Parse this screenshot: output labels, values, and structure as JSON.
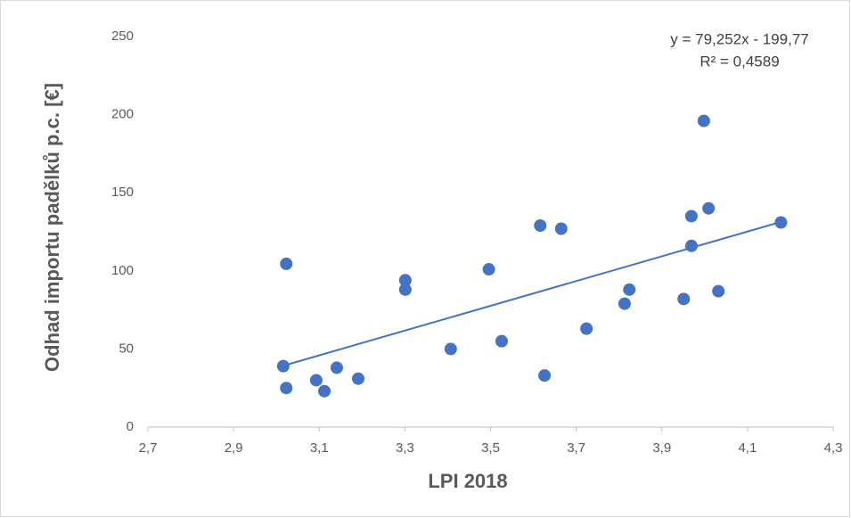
{
  "chart_data": {
    "type": "scatter",
    "xlabel": "LPI 2018",
    "ylabel": "Odhad importu padělků p.c. [€]",
    "annotations": [
      "y = 79,252x - 199,77",
      "R² = 0,4589"
    ],
    "trendline": {
      "slope": 79.252,
      "intercept": -199.77
    },
    "color": "#4472c4",
    "x": [
      3.016,
      3.023,
      3.023,
      3.093,
      3.112,
      3.141,
      3.191,
      3.301,
      3.301,
      3.407,
      3.496,
      3.526,
      3.616,
      3.626,
      3.665,
      3.724,
      3.813,
      3.824,
      3.951,
      3.969,
      3.969,
      3.998,
      4.009,
      4.032,
      4.178
    ],
    "values": [
      39,
      104.5,
      25,
      30,
      23,
      38,
      31,
      94,
      88,
      50,
      101,
      55,
      129,
      33,
      127,
      63,
      79,
      88,
      82,
      116,
      135,
      196,
      140,
      87,
      131
    ],
    "xlim": [
      2.7,
      4.3
    ],
    "xticks": [
      {
        "value": 2.7,
        "label": "2,7"
      },
      {
        "value": 2.9,
        "label": "2,9"
      },
      {
        "value": 3.1,
        "label": "3,1"
      },
      {
        "value": 3.3,
        "label": "3,3"
      },
      {
        "value": 3.5,
        "label": "3,5"
      },
      {
        "value": 3.7,
        "label": "3,7"
      },
      {
        "value": 3.9,
        "label": "3,9"
      },
      {
        "value": 4.1,
        "label": "4,1"
      },
      {
        "value": 4.3,
        "label": "4,3"
      }
    ],
    "ylim": [
      0,
      250
    ],
    "yticks": [
      0,
      50,
      100,
      150,
      200,
      250
    ],
    "grid": false
  }
}
